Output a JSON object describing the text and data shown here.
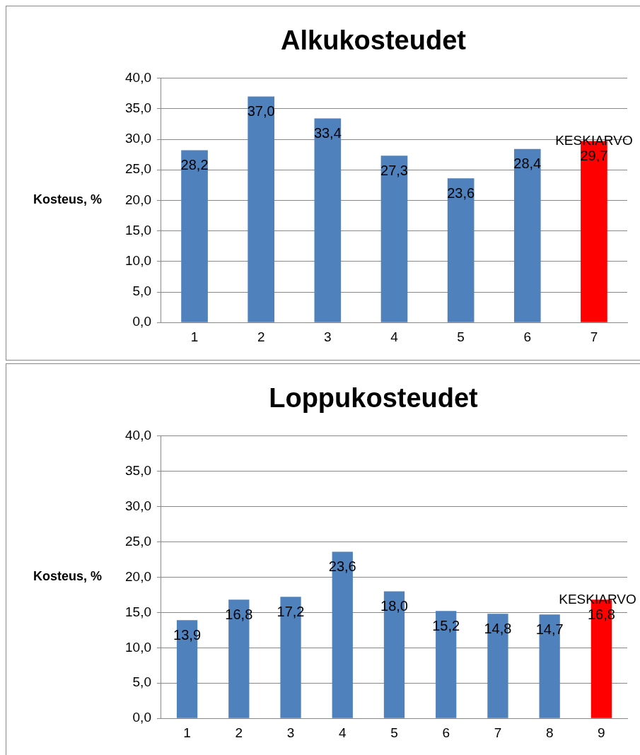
{
  "chart_data": [
    {
      "type": "bar",
      "title": "Alkukosteudet",
      "ylabel": "Kosteus, %",
      "categories": [
        "1",
        "2",
        "3",
        "4",
        "5",
        "6",
        "7"
      ],
      "values": [
        28.2,
        37.0,
        33.4,
        27.3,
        23.6,
        28.4,
        29.7
      ],
      "colors": [
        "#4f81bd",
        "#4f81bd",
        "#4f81bd",
        "#4f81bd",
        "#4f81bd",
        "#4f81bd",
        "#ff0000"
      ],
      "value_labels": [
        "28,2",
        "37,0",
        "33,4",
        "27,3",
        "23,6",
        "28,4",
        "29,7"
      ],
      "annotations": [
        {
          "text": "KESKIARVO",
          "x": "7",
          "y": 29.7
        }
      ],
      "ylim": [
        0,
        40
      ],
      "yticks": [
        {
          "value": 0,
          "label": "0,0"
        },
        {
          "value": 5,
          "label": "5,0"
        },
        {
          "value": 10,
          "label": "10,0"
        },
        {
          "value": 15,
          "label": "15,0"
        },
        {
          "value": 20,
          "label": "20,0"
        },
        {
          "value": 25,
          "label": "25,0"
        },
        {
          "value": 30,
          "label": "30,0"
        },
        {
          "value": 35,
          "label": "35,0"
        },
        {
          "value": 40,
          "label": "40,0"
        }
      ],
      "grid": "y",
      "legend": false
    },
    {
      "type": "bar",
      "title": "Loppukosteudet",
      "ylabel": "Kosteus, %",
      "categories": [
        "1",
        "2",
        "3",
        "4",
        "5",
        "6",
        "7",
        "8",
        "9"
      ],
      "values": [
        13.9,
        16.8,
        17.2,
        23.6,
        18.0,
        15.2,
        14.8,
        14.7,
        16.8
      ],
      "colors": [
        "#4f81bd",
        "#4f81bd",
        "#4f81bd",
        "#4f81bd",
        "#4f81bd",
        "#4f81bd",
        "#4f81bd",
        "#4f81bd",
        "#ff0000"
      ],
      "value_labels": [
        "13,9",
        "16,8",
        "17,2",
        "23,6",
        "18,0",
        "15,2",
        "14,8",
        "14,7",
        "16,8"
      ],
      "annotations": [
        {
          "text": "KESKIARVO",
          "x": "9",
          "y": 16.8
        }
      ],
      "ylim": [
        0,
        40
      ],
      "yticks": [
        {
          "value": 0,
          "label": "0,0"
        },
        {
          "value": 5,
          "label": "5,0"
        },
        {
          "value": 10,
          "label": "10,0"
        },
        {
          "value": 15,
          "label": "15,0"
        },
        {
          "value": 20,
          "label": "20,0"
        },
        {
          "value": 25,
          "label": "25,0"
        },
        {
          "value": 30,
          "label": "30,0"
        },
        {
          "value": 35,
          "label": "35,0"
        },
        {
          "value": 40,
          "label": "40,0"
        }
      ],
      "grid": "y",
      "legend": false
    }
  ]
}
